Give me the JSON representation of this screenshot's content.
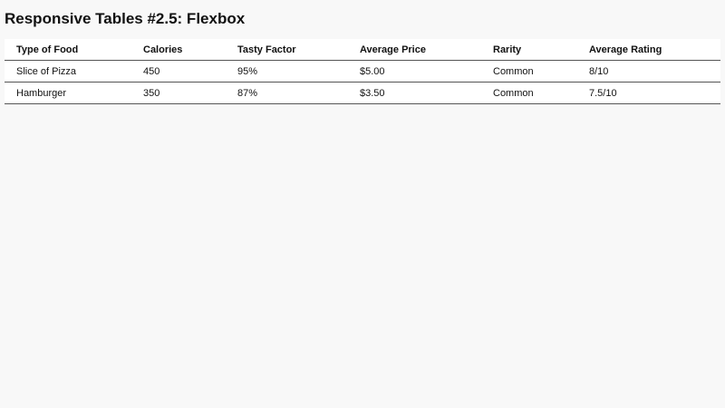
{
  "page_title": "Responsive Tables #2.5: Flexbox",
  "table": {
    "headers": [
      "Type of Food",
      "Calories",
      "Tasty Factor",
      "Average Price",
      "Rarity",
      "Average Rating"
    ],
    "rows": [
      [
        "Slice of Pizza",
        "450",
        "95%",
        "$5.00",
        "Common",
        "8/10"
      ],
      [
        "Hamburger",
        "350",
        "87%",
        "$3.50",
        "Common",
        "7.5/10"
      ]
    ]
  }
}
